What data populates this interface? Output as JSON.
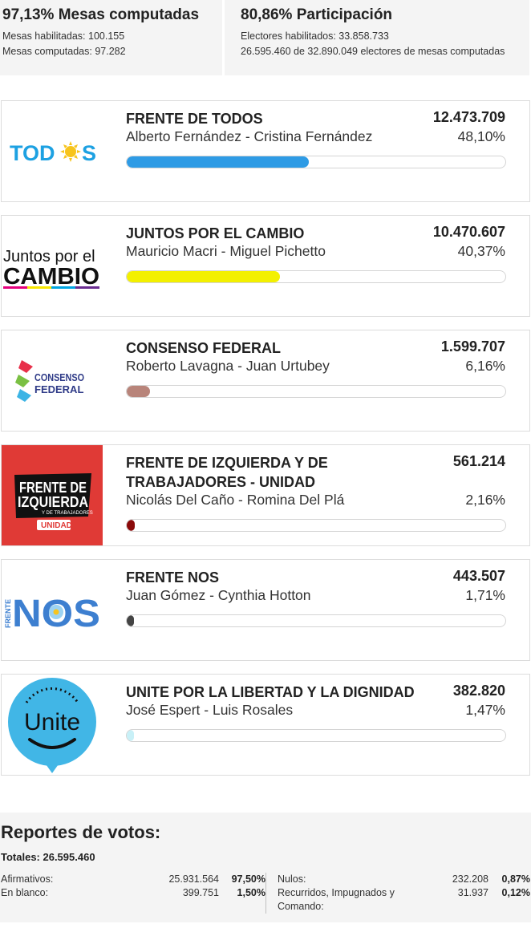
{
  "stats": {
    "mesas": {
      "title": "97,13% Mesas computadas",
      "habilitadas": "Mesas habilitadas: 100.155",
      "computadas": "Mesas computadas: 97.282"
    },
    "participacion": {
      "title": "80,86% Participación",
      "electores": "Electores habilitados: 33.858.733",
      "detalle": "26.595.460 de 32.890.049 electores de mesas computadas"
    }
  },
  "candidates": [
    {
      "party": "FRENTE DE TODOS",
      "names": "Alberto Fernández - Cristina Fernández",
      "votes": "12.473.709",
      "percent": "48,10%",
      "share": 48.1,
      "color": "#2e9be5",
      "logo": {
        "kind": "todos",
        "text_a": "TOD",
        "text_b": "S"
      }
    },
    {
      "party": "JUNTOS POR EL CAMBIO",
      "names": "Mauricio Macri - Miguel Pichetto",
      "votes": "10.470.607",
      "percent": "40,37%",
      "share": 40.37,
      "color": "#f3f000",
      "logo": {
        "kind": "cambio",
        "line1": "Juntos por el",
        "line2": "CAMBIO"
      }
    },
    {
      "party": "CONSENSO FEDERAL",
      "names": "Roberto Lavagna - Juan Urtubey",
      "votes": "1.599.707",
      "percent": "6,16%",
      "share": 6.16,
      "color": "#b8847a",
      "logo": {
        "kind": "consenso",
        "line1": "CONSENSO",
        "line2": "FEDERAL"
      }
    },
    {
      "party": "FRENTE DE IZQUIERDA Y DE TRABAJADORES - UNIDAD",
      "names": "Nicolás Del Caño - Romina Del Plá",
      "votes": "561.214",
      "percent": "2,16%",
      "share": 2.16,
      "color": "#8b0a0a",
      "logo": {
        "kind": "izquierda",
        "line1": "FRENTE DE",
        "line2": "IZQUIERDA",
        "line3": "Y DE TRABAJADORES",
        "line4": "UNIDAD"
      }
    },
    {
      "party": "FRENTE NOS",
      "names": "Juan Gómez - Cynthia Hotton",
      "votes": "443.507",
      "percent": "1,71%",
      "share": 1.71,
      "color": "#444444",
      "logo": {
        "kind": "nos",
        "side": "FRENTE",
        "main": "NOS"
      }
    },
    {
      "party": "UNITE POR LA LIBERTAD Y LA DIGNIDAD",
      "names": "José Espert - Luis Rosales",
      "votes": "382.820",
      "percent": "1,47%",
      "share": 1.47,
      "color": "#c8f0f7",
      "logo": {
        "kind": "unite",
        "text": "Unite"
      }
    }
  ],
  "reports": {
    "title": "Reportes de votos:",
    "totals": "Totales: 26.595.460",
    "left": [
      {
        "label": "Afirmativos:",
        "value": "25.931.564",
        "percent": "97,50%"
      },
      {
        "label": "En blanco:",
        "value": "399.751",
        "percent": "1,50%"
      }
    ],
    "right": [
      {
        "label": "Nulos:",
        "value": "232.208",
        "percent": "0,87%"
      },
      {
        "label": "Recurridos, Impugnados y Comando:",
        "value": "31.937",
        "percent": "0,12%"
      }
    ]
  }
}
